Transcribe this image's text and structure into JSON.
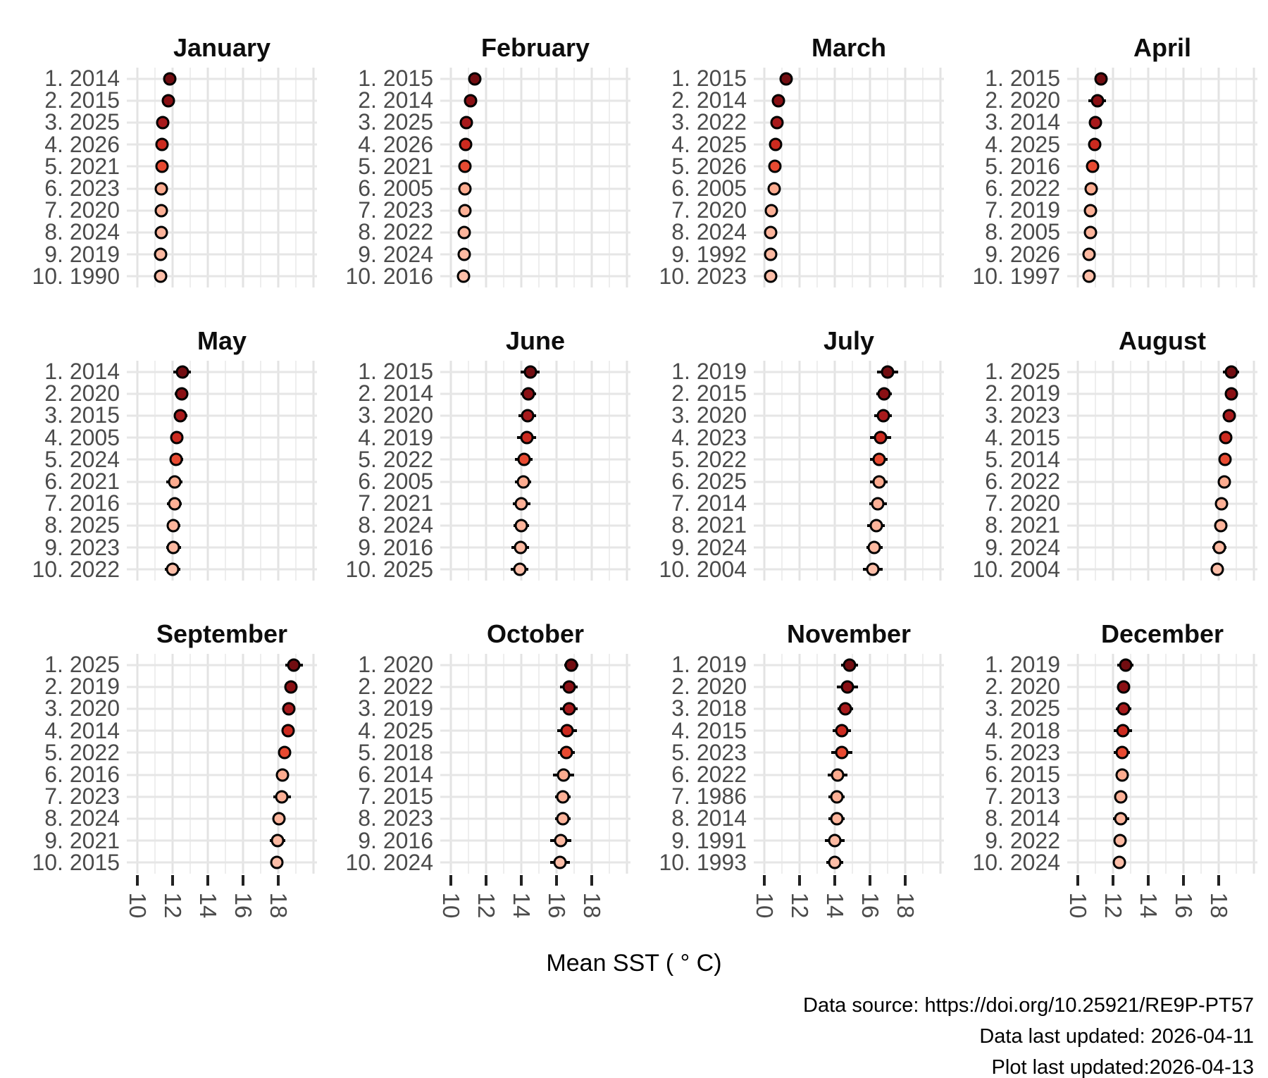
{
  "x_axis": {
    "label": "Mean SST ( ° C)",
    "tick_labels": [
      "10",
      "12",
      "14",
      "16",
      "18"
    ]
  },
  "caption": {
    "lines": [
      "Data source: https://doi.org/10.25921/RE9P-PT57",
      "Data last updated: 2026-04-11",
      "Plot last updated:2026-04-13"
    ]
  },
  "chart_data": {
    "type": "scatter",
    "subtype": "ranked-dot-plot-with-error-bars",
    "xlabel": "Mean SST ( ° C)",
    "x_domain": [
      9.4,
      20.2
    ],
    "x_ticks": [
      10,
      12,
      14,
      16,
      18
    ],
    "x_major_grid": [
      10,
      12,
      14,
      16,
      18,
      20
    ],
    "x_minor_grid": [
      11,
      13,
      15,
      17,
      19
    ],
    "grid": true,
    "legend": "none",
    "rank_colors": [
      "#720d11",
      "#8a1014",
      "#a81a1c",
      "#cc2a1f",
      "#e84a31",
      "#fcab8f",
      "#fcb096",
      "#fcb49b",
      "#fcb9a1",
      "#fcbea8"
    ],
    "row_label_format": "{rank}. {year}",
    "facets": [
      {
        "month": "January",
        "rows": [
          [
            2014,
            11.85,
            0.12
          ],
          [
            2015,
            11.75,
            0.12
          ],
          [
            2025,
            11.45,
            0.1
          ],
          [
            2026,
            11.4,
            0.1
          ],
          [
            2021,
            11.4,
            0.1
          ],
          [
            2023,
            11.35,
            0.08
          ],
          [
            2020,
            11.35,
            0.08
          ],
          [
            2024,
            11.35,
            0.08
          ],
          [
            2019,
            11.3,
            0.08
          ],
          [
            1990,
            11.3,
            0.08
          ]
        ]
      },
      {
        "month": "February",
        "rows": [
          [
            2015,
            11.35,
            0.12
          ],
          [
            2014,
            11.1,
            0.12
          ],
          [
            2025,
            10.9,
            0.1
          ],
          [
            2026,
            10.85,
            0.1
          ],
          [
            2021,
            10.8,
            0.1
          ],
          [
            2005,
            10.8,
            0.08
          ],
          [
            2023,
            10.8,
            0.08
          ],
          [
            2022,
            10.75,
            0.08
          ],
          [
            2024,
            10.75,
            0.08
          ],
          [
            2016,
            10.7,
            0.08
          ]
        ]
      },
      {
        "month": "March",
        "rows": [
          [
            2015,
            11.25,
            0.1
          ],
          [
            2014,
            10.8,
            0.1
          ],
          [
            2022,
            10.7,
            0.1
          ],
          [
            2025,
            10.65,
            0.1
          ],
          [
            2026,
            10.6,
            0.1
          ],
          [
            2005,
            10.55,
            0.1
          ],
          [
            2020,
            10.4,
            0.08
          ],
          [
            2024,
            10.35,
            0.08
          ],
          [
            1992,
            10.35,
            0.08
          ],
          [
            2023,
            10.35,
            0.08
          ]
        ]
      },
      {
        "month": "April",
        "rows": [
          [
            2015,
            11.3,
            0.2
          ],
          [
            2020,
            11.1,
            0.5
          ],
          [
            2014,
            11.0,
            0.2
          ],
          [
            2025,
            10.95,
            0.2
          ],
          [
            2016,
            10.85,
            0.2
          ],
          [
            2022,
            10.75,
            0.15
          ],
          [
            2019,
            10.7,
            0.25
          ],
          [
            2005,
            10.7,
            0.15
          ],
          [
            2026,
            10.65,
            0.15
          ],
          [
            1997,
            10.65,
            0.15
          ]
        ]
      },
      {
        "month": "May",
        "rows": [
          [
            2014,
            12.55,
            0.5
          ],
          [
            2020,
            12.5,
            0.38
          ],
          [
            2015,
            12.45,
            0.38
          ],
          [
            2005,
            12.25,
            0.3
          ],
          [
            2024,
            12.2,
            0.38
          ],
          [
            2021,
            12.1,
            0.45
          ],
          [
            2016,
            12.1,
            0.42
          ],
          [
            2025,
            12.05,
            0.38
          ],
          [
            2023,
            12.05,
            0.42
          ],
          [
            2022,
            12.0,
            0.45
          ]
        ]
      },
      {
        "month": "June",
        "rows": [
          [
            2015,
            14.5,
            0.55
          ],
          [
            2014,
            14.4,
            0.45
          ],
          [
            2020,
            14.35,
            0.5
          ],
          [
            2019,
            14.3,
            0.55
          ],
          [
            2022,
            14.15,
            0.5
          ],
          [
            2005,
            14.1,
            0.45
          ],
          [
            2021,
            14.0,
            0.5
          ],
          [
            2024,
            14.0,
            0.45
          ],
          [
            2016,
            13.95,
            0.5
          ],
          [
            2025,
            13.9,
            0.5
          ]
        ]
      },
      {
        "month": "July",
        "rows": [
          [
            2019,
            17.0,
            0.6
          ],
          [
            2015,
            16.8,
            0.45
          ],
          [
            2020,
            16.75,
            0.5
          ],
          [
            2023,
            16.6,
            0.6
          ],
          [
            2022,
            16.5,
            0.5
          ],
          [
            2025,
            16.5,
            0.5
          ],
          [
            2014,
            16.45,
            0.5
          ],
          [
            2021,
            16.35,
            0.5
          ],
          [
            2024,
            16.25,
            0.45
          ],
          [
            2004,
            16.15,
            0.55
          ]
        ]
      },
      {
        "month": "August",
        "rows": [
          [
            2025,
            18.7,
            0.45
          ],
          [
            2019,
            18.7,
            0.2
          ],
          [
            2023,
            18.6,
            0.2
          ],
          [
            2015,
            18.4,
            0.2
          ],
          [
            2014,
            18.35,
            0.2
          ],
          [
            2022,
            18.3,
            0.2
          ],
          [
            2020,
            18.15,
            0.2
          ],
          [
            2021,
            18.1,
            0.2
          ],
          [
            2024,
            18.05,
            0.4
          ],
          [
            2004,
            17.9,
            0.2
          ]
        ]
      },
      {
        "month": "September",
        "rows": [
          [
            2025,
            18.9,
            0.5
          ],
          [
            2019,
            18.7,
            0.3
          ],
          [
            2020,
            18.6,
            0.2
          ],
          [
            2014,
            18.55,
            0.2
          ],
          [
            2022,
            18.35,
            0.2
          ],
          [
            2016,
            18.25,
            0.3
          ],
          [
            2023,
            18.2,
            0.5
          ],
          [
            2024,
            18.05,
            0.2
          ],
          [
            2021,
            17.95,
            0.45
          ],
          [
            2015,
            17.9,
            0.2
          ]
        ]
      },
      {
        "month": "October",
        "rows": [
          [
            2020,
            16.85,
            0.4
          ],
          [
            2022,
            16.7,
            0.5
          ],
          [
            2019,
            16.7,
            0.5
          ],
          [
            2025,
            16.6,
            0.55
          ],
          [
            2018,
            16.55,
            0.48
          ],
          [
            2014,
            16.4,
            0.6
          ],
          [
            2015,
            16.35,
            0.45
          ],
          [
            2023,
            16.35,
            0.45
          ],
          [
            2016,
            16.25,
            0.6
          ],
          [
            2024,
            16.2,
            0.55
          ]
        ]
      },
      {
        "month": "November",
        "rows": [
          [
            2019,
            14.85,
            0.48
          ],
          [
            2020,
            14.7,
            0.6
          ],
          [
            2018,
            14.6,
            0.45
          ],
          [
            2015,
            14.4,
            0.52
          ],
          [
            2023,
            14.4,
            0.6
          ],
          [
            2022,
            14.15,
            0.55
          ],
          [
            1986,
            14.1,
            0.48
          ],
          [
            2014,
            14.1,
            0.45
          ],
          [
            1991,
            14.0,
            0.55
          ],
          [
            1993,
            14.0,
            0.48
          ]
        ]
      },
      {
        "month": "December",
        "rows": [
          [
            2019,
            12.7,
            0.48
          ],
          [
            2020,
            12.6,
            0.36
          ],
          [
            2025,
            12.6,
            0.45
          ],
          [
            2018,
            12.55,
            0.52
          ],
          [
            2023,
            12.5,
            0.45
          ],
          [
            2015,
            12.5,
            0.36
          ],
          [
            2013,
            12.45,
            0.2
          ],
          [
            2014,
            12.45,
            0.45
          ],
          [
            2022,
            12.4,
            0.2
          ],
          [
            2024,
            12.35,
            0.32
          ]
        ]
      }
    ]
  }
}
